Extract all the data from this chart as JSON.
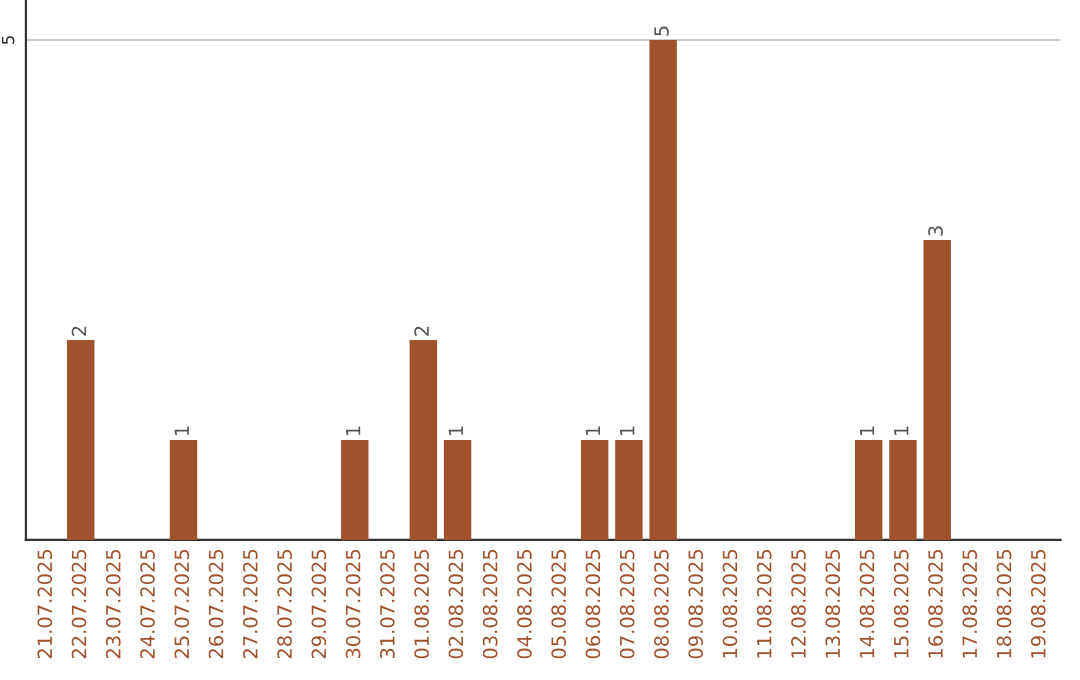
{
  "chart_data": {
    "type": "bar",
    "categories": [
      "21.07.2025",
      "22.07.2025",
      "23.07.2025",
      "24.07.2025",
      "25.07.2025",
      "26.07.2025",
      "27.07.2025",
      "28.07.2025",
      "29.07.2025",
      "30.07.2025",
      "31.07.2025",
      "01.08.2025",
      "02.08.2025",
      "03.08.2025",
      "04.08.2025",
      "05.08.2025",
      "06.08.2025",
      "07.08.2025",
      "08.08.2025",
      "09.08.2025",
      "10.08.2025",
      "11.08.2025",
      "12.08.2025",
      "13.08.2025",
      "14.08.2025",
      "15.08.2025",
      "16.08.2025",
      "17.08.2025",
      "18.08.2025",
      "19.08.2025"
    ],
    "values": [
      0,
      2,
      0,
      0,
      1,
      0,
      0,
      0,
      0,
      1,
      0,
      2,
      1,
      0,
      0,
      0,
      1,
      1,
      5,
      0,
      0,
      0,
      0,
      0,
      1,
      1,
      3,
      0,
      0,
      0
    ],
    "value_labels": [
      null,
      "2",
      null,
      null,
      "1",
      null,
      null,
      null,
      null,
      "1",
      null,
      "2",
      "1",
      null,
      null,
      null,
      "1",
      "1",
      "5",
      null,
      null,
      null,
      null,
      null,
      "1",
      "1",
      "3",
      null,
      null,
      null
    ],
    "color": "#a0522d",
    "ylim": [
      0,
      5.4
    ],
    "yticks": [
      5
    ],
    "grid": "y"
  }
}
